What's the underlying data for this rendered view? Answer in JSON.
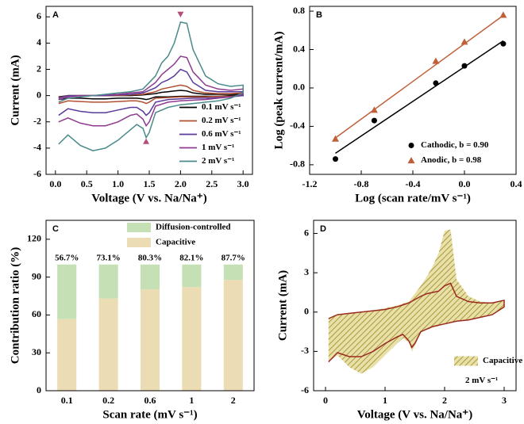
{
  "chart_data": [
    {
      "type": "line",
      "label": "A",
      "x_label": "Voltage (V vs. Na/Na⁺)",
      "y_label": "Current (mA)",
      "x": [
        0.05,
        0.2,
        0.4,
        0.6,
        0.8,
        1.0,
        1.2,
        1.4,
        1.6,
        1.7,
        1.8,
        1.9,
        2.0,
        2.1,
        2.2,
        2.4,
        2.6,
        2.8,
        3.0,
        3.0,
        2.8,
        2.6,
        2.4,
        2.2,
        2.0,
        1.8,
        1.6,
        1.5,
        1.45,
        1.4,
        1.3,
        1.2,
        1.0,
        0.8,
        0.6,
        0.4,
        0.2,
        0.05
      ],
      "series": [
        {
          "name": "0.1 mV s⁻¹",
          "color": "#000000",
          "values": [
            -0.1,
            0,
            0,
            0,
            0,
            0,
            0,
            0.05,
            0.15,
            0.25,
            0.3,
            0.35,
            0.4,
            0.35,
            0.2,
            0.1,
            0.1,
            0.1,
            0.1,
            0,
            0,
            -0.05,
            -0.05,
            -0.05,
            -0.05,
            -0.1,
            -0.1,
            -0.25,
            -0.3,
            -0.25,
            -0.2,
            -0.2,
            -0.2,
            -0.25,
            -0.25,
            -0.2,
            -0.2,
            -0.3
          ]
        },
        {
          "name": "0.2 mV s⁻¹",
          "color": "#b05030",
          "values": [
            -0.15,
            0,
            0,
            0,
            0,
            0,
            0.05,
            0.1,
            0.3,
            0.5,
            0.6,
            0.7,
            0.8,
            0.7,
            0.4,
            0.2,
            0.15,
            0.15,
            0.2,
            0,
            -0.05,
            -0.05,
            -0.1,
            -0.1,
            -0.1,
            -0.15,
            -0.2,
            -0.5,
            -0.6,
            -0.5,
            -0.4,
            -0.4,
            -0.45,
            -0.5,
            -0.5,
            -0.45,
            -0.4,
            -0.6
          ]
        },
        {
          "name": "0.6 mV s⁻¹",
          "color": "#5a3a9a",
          "values": [
            -0.2,
            0,
            0,
            0,
            0,
            0.05,
            0.1,
            0.2,
            0.6,
            1.0,
            1.2,
            1.5,
            2.0,
            1.8,
            1.0,
            0.4,
            0.3,
            0.3,
            0.3,
            0,
            -0.1,
            -0.15,
            -0.2,
            -0.2,
            -0.25,
            -0.3,
            -0.5,
            -1.3,
            -1.5,
            -1.2,
            -0.9,
            -0.9,
            -1.1,
            -1.3,
            -1.3,
            -1.2,
            -1.0,
            -1.5
          ]
        },
        {
          "name": "1 mV s⁻¹",
          "color": "#8e3a8e",
          "values": [
            -0.3,
            -0.1,
            0,
            0,
            0.05,
            0.1,
            0.2,
            0.3,
            1.0,
            1.6,
            2.0,
            2.4,
            3.0,
            2.9,
            1.8,
            0.8,
            0.5,
            0.4,
            0.5,
            0.1,
            -0.1,
            -0.2,
            -0.3,
            -0.35,
            -0.4,
            -0.5,
            -0.8,
            -2.0,
            -2.3,
            -1.8,
            -1.4,
            -1.5,
            -2.0,
            -2.3,
            -2.3,
            -2.1,
            -1.7,
            -2.0
          ]
        },
        {
          "name": "2 mV s⁻¹",
          "color": "#4a8a8a",
          "values": [
            -0.5,
            -0.2,
            -0.1,
            0,
            0.1,
            0.2,
            0.3,
            0.5,
            1.5,
            2.5,
            3.0,
            4.0,
            5.6,
            5.5,
            3.5,
            1.5,
            0.9,
            0.7,
            0.8,
            0.2,
            -0.2,
            -0.4,
            -0.5,
            -0.6,
            -0.7,
            -0.9,
            -1.3,
            -2.8,
            -3.2,
            -2.5,
            -2.2,
            -2.6,
            -3.4,
            -4.0,
            -4.2,
            -3.8,
            -3.0,
            -3.7
          ]
        }
      ],
      "markers": [
        {
          "x": 2.0,
          "y": 6.2,
          "shape": "triangle-down",
          "color": "#b0507a"
        },
        {
          "x": 1.45,
          "y": -3.5,
          "shape": "triangle-up",
          "color": "#b0507a"
        }
      ],
      "xlim": [
        -0.15,
        3.15
      ],
      "xticks": [
        {
          "value": 0,
          "label": "0.0"
        },
        0.5,
        {
          "value": 1,
          "label": "1.0"
        },
        1.5,
        {
          "value": 2,
          "label": "2.0"
        },
        2.5,
        {
          "value": 3,
          "label": "3.0"
        }
      ],
      "ylim": [
        -6,
        6.8
      ],
      "yticks": [
        -6,
        -4,
        -2,
        0,
        2,
        4,
        6
      ],
      "legend": "lower right"
    },
    {
      "type": "scatter",
      "label": "B",
      "x_label": "Log (scan rate/mV s⁻¹)",
      "y_label": "Log (peak current/mA)",
      "x": [
        -1,
        -0.699,
        -0.222,
        0,
        0.301
      ],
      "series": [
        {
          "name": "Cathodic, b = 0.90",
          "color": "#000000",
          "marker": "circle",
          "values": [
            -0.74,
            -0.34,
            0.05,
            0.23,
            0.46
          ],
          "fit": {
            "slope": 0.9,
            "intercept": 0.22
          }
        },
        {
          "name": "Anodic, b = 0.98",
          "color": "#c0603a",
          "marker": "triangle",
          "values": [
            -0.53,
            -0.23,
            0.28,
            0.48,
            0.76
          ],
          "fit": {
            "slope": 0.98,
            "intercept": 0.46
          }
        }
      ],
      "xlim": [
        -1.2,
        0.4
      ],
      "xticks": [
        -1.2,
        -0.8,
        -0.4,
        {
          "value": 0,
          "label": "0.0"
        },
        0.4
      ],
      "ylim": [
        -0.9,
        0.85
      ],
      "yticks": [
        -0.8,
        -0.4,
        {
          "value": 0,
          "label": "0.0"
        },
        0.4,
        0.8
      ],
      "legend": "lower right"
    },
    {
      "type": "bar",
      "label": "C",
      "x_label": "Scan rate (mV s⁻¹)",
      "y_label": "Contribution ratio (%)",
      "categories": [
        "0.1",
        "0.2",
        "0.6",
        "1",
        "2"
      ],
      "series": [
        {
          "name": "Capacitive",
          "color": "#ecdcb4",
          "values": [
            56.7,
            73.1,
            80.3,
            82.1,
            87.7
          ],
          "value_labels": [
            "56.7%",
            "73.1%",
            "80.3%",
            "82.1%",
            "87.7%"
          ]
        },
        {
          "name": "Diffusion-controlled",
          "color": "#c5e0b4",
          "values": [
            43.3,
            26.9,
            19.7,
            17.9,
            12.3
          ]
        }
      ],
      "stacked": true,
      "ylim": [
        0,
        135
      ],
      "yticks": [
        0,
        30,
        60,
        90,
        120
      ],
      "legend": "upper center"
    },
    {
      "type": "area",
      "label": "D",
      "x_label": "Voltage (V vs. Na/Na⁺)",
      "y_label": "Current (mA)",
      "x": [
        0.05,
        0.2,
        0.4,
        0.6,
        0.8,
        1.0,
        1.2,
        1.4,
        1.6,
        1.7,
        1.8,
        1.9,
        2.0,
        2.1,
        2.2,
        2.4,
        2.6,
        2.8,
        3.0,
        3.0,
        2.8,
        2.6,
        2.4,
        2.2,
        2.0,
        1.8,
        1.6,
        1.5,
        1.45,
        1.4,
        1.3,
        1.2,
        1.0,
        0.8,
        0.6,
        0.4,
        0.2,
        0.05
      ],
      "series": [
        {
          "name": "Capacitive",
          "color": "#b5a84a",
          "fill": "hatch",
          "values": [
            -0.5,
            -0.2,
            -0.1,
            0,
            0.1,
            0.3,
            0.5,
            0.8,
            2.0,
            2.7,
            3.5,
            4.5,
            6.2,
            6.3,
            2.5,
            1.2,
            0.8,
            0.7,
            0.9,
            0.3,
            -0.2,
            -0.4,
            -0.6,
            -0.7,
            -0.9,
            -1.2,
            -1.5,
            -2.6,
            -3.0,
            -2.3,
            -2.0,
            -2.4,
            -3.3,
            -4.2,
            -4.7,
            -4.2,
            -3.3,
            -3.8
          ]
        },
        {
          "color": "#9a2a20",
          "values": [
            -0.5,
            -0.2,
            -0.1,
            0,
            0.1,
            0.2,
            0.4,
            0.7,
            1.2,
            1.4,
            1.5,
            1.6,
            2.0,
            2.2,
            1.2,
            0.8,
            0.7,
            0.7,
            0.9,
            0.4,
            -0.2,
            -0.4,
            -0.6,
            -0.7,
            -0.9,
            -1.1,
            -1.5,
            -2.4,
            -2.7,
            -2.2,
            -1.7,
            -1.9,
            -2.4,
            -3.0,
            -3.4,
            -3.4,
            -3.1,
            -3.8
          ]
        }
      ],
      "annotation": "2 mV s⁻¹",
      "xlim": [
        -0.2,
        3.2
      ],
      "xticks": [
        0,
        1,
        2,
        3
      ],
      "ylim": [
        -6,
        7
      ],
      "yticks": [
        -6,
        -3,
        0,
        3,
        6
      ],
      "legend": "lower right"
    }
  ]
}
